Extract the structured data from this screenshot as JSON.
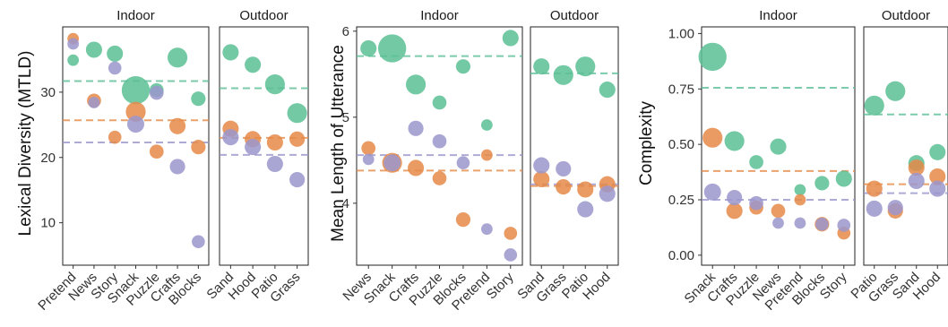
{
  "colors": {
    "green": "#5cbf95",
    "orange": "#e58a48",
    "purple": "#9b96cc"
  },
  "chart_data": [
    {
      "type": "scatter",
      "ylabel": "Lexical Diversity (MTLD)",
      "ylim": [
        3.5,
        40
      ],
      "yticks": [
        10,
        20,
        30
      ],
      "ytick_labels": [
        "10",
        "20",
        "30"
      ],
      "grid": false,
      "reference_lines": {
        "green": 31.7,
        "orange": 25.7,
        "purple": 22.3,
        "outdoor_green": 30.6,
        "outdoor_orange": 23.0,
        "outdoor_purple": 20.4
      },
      "panels": [
        {
          "title": "Indoor",
          "categories": [
            "Pretend",
            "News",
            "Story",
            "Snack",
            "Puzzle",
            "Crafts",
            "Blocks"
          ],
          "points": [
            {
              "cat": "Pretend",
              "color": "green",
              "y": 34.9,
              "size": 1
            },
            {
              "cat": "Pretend",
              "color": "orange",
              "y": 38.2,
              "size": 1
            },
            {
              "cat": "Pretend",
              "color": "purple",
              "y": 37.4,
              "size": 1
            },
            {
              "cat": "News",
              "color": "green",
              "y": 36.5,
              "size": 2
            },
            {
              "cat": "News",
              "color": "orange",
              "y": 28.7,
              "size": 1.5
            },
            {
              "cat": "News",
              "color": "purple",
              "y": 28.4,
              "size": 1
            },
            {
              "cat": "Story",
              "color": "green",
              "y": 35.9,
              "size": 2
            },
            {
              "cat": "Story",
              "color": "orange",
              "y": 23.1,
              "size": 1.3
            },
            {
              "cat": "Story",
              "color": "purple",
              "y": 33.7,
              "size": 1.3
            },
            {
              "cat": "Snack",
              "color": "green",
              "y": 30.3,
              "size": 6
            },
            {
              "cat": "Snack",
              "color": "orange",
              "y": 27.0,
              "size": 3
            },
            {
              "cat": "Snack",
              "color": "purple",
              "y": 25.1,
              "size": 2.2
            },
            {
              "cat": "Puzzle",
              "color": "green",
              "y": 30.3,
              "size": 1.5
            },
            {
              "cat": "Puzzle",
              "color": "orange",
              "y": 20.9,
              "size": 1.5
            },
            {
              "cat": "Puzzle",
              "color": "purple",
              "y": 29.9,
              "size": 1.5
            },
            {
              "cat": "Crafts",
              "color": "green",
              "y": 35.3,
              "size": 3
            },
            {
              "cat": "Crafts",
              "color": "orange",
              "y": 24.8,
              "size": 2
            },
            {
              "cat": "Crafts",
              "color": "purple",
              "y": 18.6,
              "size": 1.8
            },
            {
              "cat": "Blocks",
              "color": "green",
              "y": 29.0,
              "size": 1.6
            },
            {
              "cat": "Blocks",
              "color": "orange",
              "y": 21.6,
              "size": 1.6
            },
            {
              "cat": "Blocks",
              "color": "purple",
              "y": 7.1,
              "size": 1.3
            }
          ]
        },
        {
          "title": "Outdoor",
          "categories": [
            "Sand",
            "Hood",
            "Patio",
            "Grass"
          ],
          "points": [
            {
              "cat": "Sand",
              "color": "green",
              "y": 36.1,
              "size": 2
            },
            {
              "cat": "Sand",
              "color": "orange",
              "y": 24.4,
              "size": 2
            },
            {
              "cat": "Sand",
              "color": "purple",
              "y": 23.1,
              "size": 2
            },
            {
              "cat": "Hood",
              "color": "green",
              "y": 34.2,
              "size": 2
            },
            {
              "cat": "Hood",
              "color": "orange",
              "y": 22.8,
              "size": 2
            },
            {
              "cat": "Hood",
              "color": "purple",
              "y": 21.6,
              "size": 2
            },
            {
              "cat": "Patio",
              "color": "green",
              "y": 31.2,
              "size": 3
            },
            {
              "cat": "Patio",
              "color": "orange",
              "y": 22.3,
              "size": 2
            },
            {
              "cat": "Patio",
              "color": "purple",
              "y": 19.0,
              "size": 2
            },
            {
              "cat": "Grass",
              "color": "green",
              "y": 26.8,
              "size": 3
            },
            {
              "cat": "Grass",
              "color": "orange",
              "y": 22.8,
              "size": 1.8
            },
            {
              "cat": "Grass",
              "color": "purple",
              "y": 16.6,
              "size": 1.8
            }
          ]
        }
      ]
    },
    {
      "type": "scatter",
      "ylabel": "Mean Length of Utterance",
      "ylim": [
        3.28,
        6.05
      ],
      "yticks": [
        4,
        5,
        6
      ],
      "ytick_labels": [
        "4",
        "5",
        "6"
      ],
      "grid": false,
      "reference_lines": {
        "green": 5.71,
        "orange": 4.38,
        "purple": 4.56,
        "outdoor_green": 5.51,
        "outdoor_orange": 4.2,
        "outdoor_purple": 4.22
      },
      "panels": [
        {
          "title": "Indoor",
          "categories": [
            "News",
            "Snack",
            "Crafts",
            "Puzzle",
            "Blocks",
            "Pretend",
            "Story"
          ],
          "points": [
            {
              "cat": "News",
              "color": "green",
              "y": 5.8,
              "size": 2
            },
            {
              "cat": "News",
              "color": "orange",
              "y": 4.64,
              "size": 1.5
            },
            {
              "cat": "News",
              "color": "purple",
              "y": 4.51,
              "size": 1
            },
            {
              "cat": "Snack",
              "color": "green",
              "y": 5.8,
              "size": 6
            },
            {
              "cat": "Snack",
              "color": "orange",
              "y": 4.47,
              "size": 3
            },
            {
              "cat": "Snack",
              "color": "purple",
              "y": 4.47,
              "size": 2.2
            },
            {
              "cat": "Crafts",
              "color": "green",
              "y": 5.38,
              "size": 3
            },
            {
              "cat": "Crafts",
              "color": "orange",
              "y": 4.41,
              "size": 2
            },
            {
              "cat": "Crafts",
              "color": "purple",
              "y": 4.87,
              "size": 1.8
            },
            {
              "cat": "Puzzle",
              "color": "green",
              "y": 5.17,
              "size": 1.5
            },
            {
              "cat": "Puzzle",
              "color": "orange",
              "y": 4.29,
              "size": 1.5
            },
            {
              "cat": "Puzzle",
              "color": "purple",
              "y": 4.72,
              "size": 1.5
            },
            {
              "cat": "Blocks",
              "color": "green",
              "y": 5.59,
              "size": 1.6
            },
            {
              "cat": "Blocks",
              "color": "orange",
              "y": 3.81,
              "size": 1.6
            },
            {
              "cat": "Blocks",
              "color": "purple",
              "y": 4.47,
              "size": 1.3
            },
            {
              "cat": "Pretend",
              "color": "green",
              "y": 4.91,
              "size": 1
            },
            {
              "cat": "Pretend",
              "color": "orange",
              "y": 4.56,
              "size": 1
            },
            {
              "cat": "Pretend",
              "color": "purple",
              "y": 3.7,
              "size": 1
            },
            {
              "cat": "Story",
              "color": "green",
              "y": 5.92,
              "size": 2
            },
            {
              "cat": "Story",
              "color": "orange",
              "y": 3.65,
              "size": 1.3
            },
            {
              "cat": "Story",
              "color": "purple",
              "y": 3.4,
              "size": 1.3
            }
          ]
        },
        {
          "title": "Outdoor",
          "categories": [
            "Sand",
            "Grass",
            "Patio",
            "Hood"
          ],
          "points": [
            {
              "cat": "Sand",
              "color": "green",
              "y": 5.59,
              "size": 2
            },
            {
              "cat": "Sand",
              "color": "orange",
              "y": 4.28,
              "size": 2
            },
            {
              "cat": "Sand",
              "color": "purple",
              "y": 4.44,
              "size": 2
            },
            {
              "cat": "Grass",
              "color": "green",
              "y": 5.49,
              "size": 3
            },
            {
              "cat": "Grass",
              "color": "orange",
              "y": 4.19,
              "size": 1.8
            },
            {
              "cat": "Grass",
              "color": "purple",
              "y": 4.4,
              "size": 1.8
            },
            {
              "cat": "Patio",
              "color": "green",
              "y": 5.59,
              "size": 3
            },
            {
              "cat": "Patio",
              "color": "orange",
              "y": 4.16,
              "size": 2
            },
            {
              "cat": "Patio",
              "color": "purple",
              "y": 3.93,
              "size": 2
            },
            {
              "cat": "Hood",
              "color": "green",
              "y": 5.32,
              "size": 2
            },
            {
              "cat": "Hood",
              "color": "orange",
              "y": 4.22,
              "size": 2
            },
            {
              "cat": "Hood",
              "color": "purple",
              "y": 4.11,
              "size": 2
            }
          ]
        }
      ]
    },
    {
      "type": "scatter",
      "ylabel": "Complexity",
      "ylim": [
        -0.045,
        1.03
      ],
      "yticks": [
        0,
        0.25,
        0.5,
        0.75,
        1
      ],
      "ytick_labels": [
        "0.00",
        "0.25",
        "0.50",
        "0.75",
        "1.00"
      ],
      "grid": false,
      "reference_lines": {
        "green": 0.755,
        "orange": 0.38,
        "purple": 0.25,
        "outdoor_green": 0.635,
        "outdoor_orange": 0.32,
        "outdoor_purple": 0.28
      },
      "panels": [
        {
          "title": "Indoor",
          "categories": [
            "Snack",
            "Crafts",
            "Puzzle",
            "News",
            "Pretend",
            "Blocks",
            "Story"
          ],
          "points": [
            {
              "cat": "Snack",
              "color": "green",
              "y": 0.895,
              "size": 6
            },
            {
              "cat": "Snack",
              "color": "orange",
              "y": 0.53,
              "size": 3
            },
            {
              "cat": "Snack",
              "color": "purple",
              "y": 0.285,
              "size": 2.2
            },
            {
              "cat": "Crafts",
              "color": "green",
              "y": 0.515,
              "size": 3
            },
            {
              "cat": "Crafts",
              "color": "orange",
              "y": 0.2,
              "size": 2
            },
            {
              "cat": "Crafts",
              "color": "purple",
              "y": 0.26,
              "size": 1.8
            },
            {
              "cat": "Puzzle",
              "color": "green",
              "y": 0.42,
              "size": 1.5
            },
            {
              "cat": "Puzzle",
              "color": "orange",
              "y": 0.215,
              "size": 1.5
            },
            {
              "cat": "Puzzle",
              "color": "purple",
              "y": 0.235,
              "size": 1.5
            },
            {
              "cat": "News",
              "color": "green",
              "y": 0.49,
              "size": 2
            },
            {
              "cat": "News",
              "color": "orange",
              "y": 0.2,
              "size": 1.5
            },
            {
              "cat": "News",
              "color": "purple",
              "y": 0.145,
              "size": 1
            },
            {
              "cat": "Pretend",
              "color": "green",
              "y": 0.295,
              "size": 1
            },
            {
              "cat": "Pretend",
              "color": "orange",
              "y": 0.25,
              "size": 1
            },
            {
              "cat": "Pretend",
              "color": "purple",
              "y": 0.145,
              "size": 1
            },
            {
              "cat": "Blocks",
              "color": "green",
              "y": 0.325,
              "size": 1.6
            },
            {
              "cat": "Blocks",
              "color": "orange",
              "y": 0.14,
              "size": 1.6
            },
            {
              "cat": "Blocks",
              "color": "purple",
              "y": 0.14,
              "size": 1.3
            },
            {
              "cat": "Story",
              "color": "green",
              "y": 0.345,
              "size": 2
            },
            {
              "cat": "Story",
              "color": "orange",
              "y": 0.1,
              "size": 1.3
            },
            {
              "cat": "Story",
              "color": "purple",
              "y": 0.135,
              "size": 1.3
            }
          ]
        },
        {
          "title": "Outdoor",
          "categories": [
            "Patio",
            "Grass",
            "Sand",
            "Hood"
          ],
          "points": [
            {
              "cat": "Patio",
              "color": "green",
              "y": 0.675,
              "size": 3
            },
            {
              "cat": "Patio",
              "color": "orange",
              "y": 0.3,
              "size": 2
            },
            {
              "cat": "Patio",
              "color": "purple",
              "y": 0.21,
              "size": 2
            },
            {
              "cat": "Grass",
              "color": "green",
              "y": 0.74,
              "size": 3
            },
            {
              "cat": "Grass",
              "color": "orange",
              "y": 0.2,
              "size": 1.8
            },
            {
              "cat": "Grass",
              "color": "purple",
              "y": 0.215,
              "size": 1.8
            },
            {
              "cat": "Sand",
              "color": "green",
              "y": 0.415,
              "size": 2
            },
            {
              "cat": "Sand",
              "color": "orange",
              "y": 0.395,
              "size": 2
            },
            {
              "cat": "Sand",
              "color": "purple",
              "y": 0.335,
              "size": 2
            },
            {
              "cat": "Hood",
              "color": "green",
              "y": 0.465,
              "size": 2
            },
            {
              "cat": "Hood",
              "color": "orange",
              "y": 0.355,
              "size": 2
            },
            {
              "cat": "Hood",
              "color": "purple",
              "y": 0.3,
              "size": 2
            }
          ]
        }
      ]
    }
  ]
}
